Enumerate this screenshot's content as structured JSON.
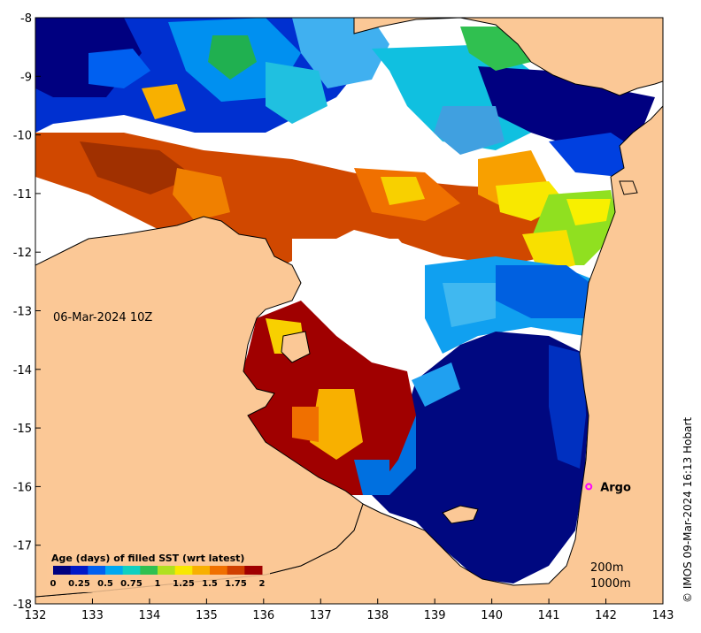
{
  "map": {
    "lon_ticks": [
      "132",
      "133",
      "134",
      "135",
      "136",
      "137",
      "138",
      "139",
      "140",
      "141",
      "142",
      "143"
    ],
    "lat_ticks": [
      "-8",
      "-9",
      "-10",
      "-11",
      "-12",
      "-13",
      "-14",
      "-15",
      "-16",
      "-17",
      "-18"
    ],
    "lon_range": [
      132,
      143
    ],
    "lat_range": [
      -18,
      -8
    ],
    "date_label": "06-Mar-2024 10Z",
    "argo_label": "Argo",
    "argo_position": {
      "lon": 141.7,
      "lat": -16.0
    },
    "contour_labels": [
      "200m",
      "1000m"
    ],
    "credit": "© IMOS 09-Mar-2024 16:13 Hobart",
    "land_color": "#fbc896",
    "no_data_color": "#ffffff"
  },
  "colorbar": {
    "title": "Age (days) of filled SST (wrt latest)",
    "ticks": [
      "0",
      "0.25",
      "0.5",
      "0.75",
      "1",
      "1.25",
      "1.5",
      "1.75",
      "2"
    ],
    "colors": [
      "#000080",
      "#0018c8",
      "#0060f0",
      "#00a8f0",
      "#10d0c0",
      "#30c050",
      "#b0e020",
      "#f8e800",
      "#f8b000",
      "#f07000",
      "#d04000",
      "#a00000"
    ]
  }
}
